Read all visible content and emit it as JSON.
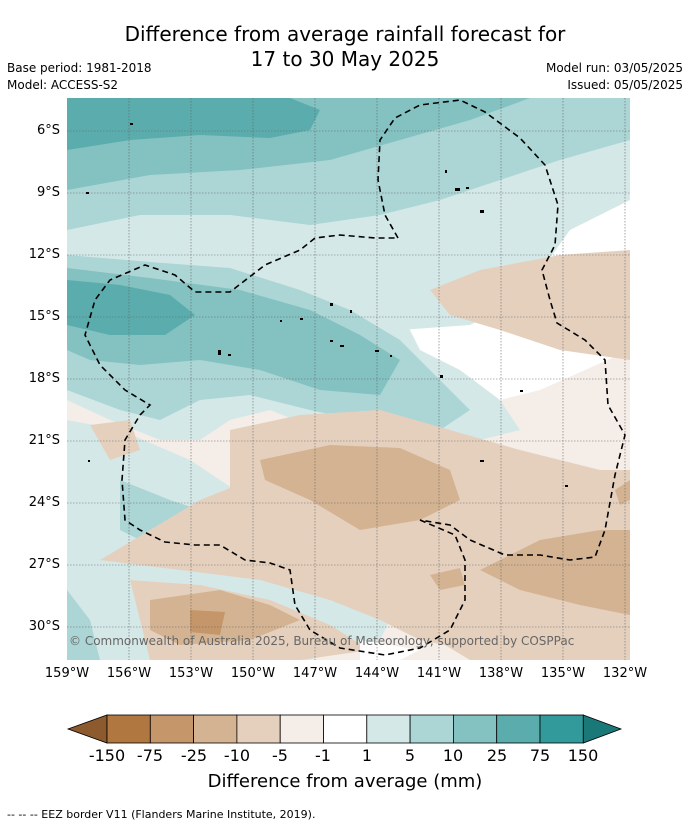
{
  "title": {
    "line1": "Difference from average rainfall forecast for",
    "line2": "17 to 30 May 2025"
  },
  "meta": {
    "base_period": "Base period: 1981-2018",
    "model": "Model: ACCESS-S2",
    "model_run": "Model run: 03/05/2025",
    "issued": "Issued: 05/05/2025"
  },
  "axes": {
    "lat_labels": [
      "6°S",
      "9°S",
      "12°S",
      "15°S",
      "18°S",
      "21°S",
      "24°S",
      "27°S",
      "30°S"
    ],
    "lon_labels": [
      "159°W",
      "156°W",
      "153°W",
      "150°W",
      "147°W",
      "144°W",
      "141°W",
      "138°W",
      "135°W",
      "132°W"
    ]
  },
  "copyright": "© Commonwealth of Australia 2025, Bureau of Meteorology, supported by COSPPac",
  "colorbar": {
    "labels": [
      "-150",
      "-75",
      "-25",
      "-10",
      "-5",
      "-1",
      "1",
      "5",
      "10",
      "25",
      "75",
      "150"
    ],
    "colors": [
      "#8c5a2c",
      "#b07840",
      "#c4966a",
      "#d4b392",
      "#e5d0be",
      "#f5ede8",
      "#ffffff",
      "#d5e8e8",
      "#acd5d5",
      "#84c1c1",
      "#5aacad",
      "#329a9a",
      "#1a7878"
    ],
    "title": "Difference from average (mm)"
  },
  "footer": "--  --  -- EEZ border V11 (Flanders Marine Institute, 2019)."
}
